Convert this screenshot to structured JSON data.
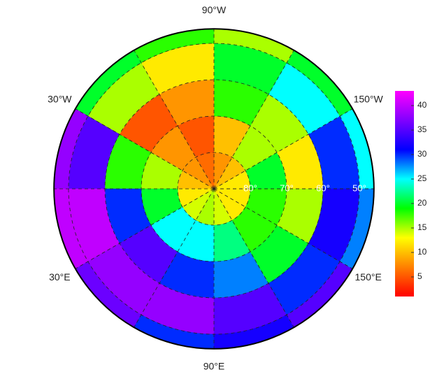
{
  "chart_data": {
    "type": "polar-heatmap",
    "lat_edges": [
      90,
      80,
      70,
      60,
      50,
      46
    ],
    "lon_edges": [
      -180,
      -150,
      -120,
      -90,
      -60,
      -30,
      0,
      30,
      60,
      90,
      120,
      150,
      180
    ],
    "values": [
      [
        12,
        10,
        8,
        6,
        8,
        10,
        12,
        14,
        15,
        14,
        12,
        12
      ],
      [
        20,
        15,
        10,
        5,
        8,
        15,
        20,
        25,
        25,
        22,
        18,
        18
      ],
      [
        12,
        15,
        18,
        8,
        5,
        18,
        30,
        35,
        30,
        28,
        20,
        15
      ],
      [
        30,
        25,
        20,
        12,
        15,
        35,
        40,
        38,
        38,
        35,
        30,
        32
      ],
      [
        25,
        20,
        15,
        18,
        20,
        38,
        40,
        36,
        30,
        32,
        35,
        28
      ]
    ],
    "lon_labels": [
      {
        "value": -90,
        "label": "90°W"
      },
      {
        "value": -30,
        "label": "30°W"
      },
      {
        "value": -150,
        "label": "150°W"
      },
      {
        "value": 30,
        "label": "30°E"
      },
      {
        "value": 150,
        "label": "150°E"
      },
      {
        "value": 90,
        "label": "90°E"
      }
    ],
    "lat_labels": [
      {
        "value": 80,
        "label": "80°"
      },
      {
        "value": 70,
        "label": "70°"
      },
      {
        "value": 60,
        "label": "60°"
      },
      {
        "value": 50,
        "label": "50°"
      }
    ],
    "colormap": [
      "#ff0000",
      "#ff8000",
      "#ffff00",
      "#00ff00",
      "#00ffff",
      "#0000ff",
      "#8000ff",
      "#ff00ff"
    ],
    "clim": [
      1,
      43
    ],
    "cticks": [
      5,
      10,
      15,
      20,
      25,
      30,
      35,
      40
    ]
  }
}
